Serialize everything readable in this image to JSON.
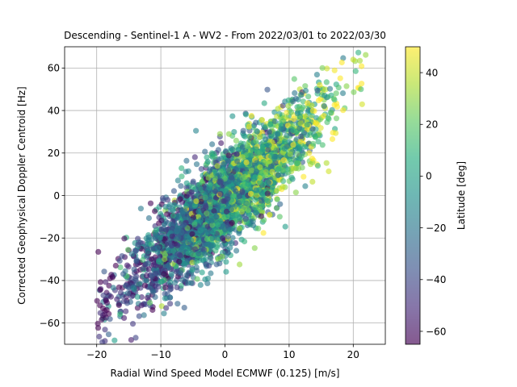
{
  "chart_data": {
    "type": "scatter",
    "title": "Descending - Sentinel-1 A - WV2 - From 2022/03/01 to 2022/03/30",
    "xlabel": "Radial Wind Speed Model ECMWF (0.125) [m/s]",
    "ylabel": "Corrected Geophysical Doppler Centroid [Hz]",
    "xlim": [
      -25,
      25
    ],
    "ylim": [
      -70,
      70
    ],
    "xticks": [
      -20,
      -10,
      0,
      10,
      20
    ],
    "yticks": [
      -60,
      -40,
      -20,
      0,
      20,
      40,
      60
    ],
    "xtick_labels": [
      "−20",
      "−10",
      "0",
      "10",
      "20"
    ],
    "ytick_labels": [
      "−60",
      "−40",
      "−20",
      "0",
      "20",
      "40",
      "60"
    ],
    "grid": true,
    "colormap": "viridis",
    "alpha": 0.6,
    "colorbar": {
      "label": "Latitude [deg]",
      "range": [
        -65,
        50
      ],
      "ticks": [
        -60,
        -40,
        -20,
        0,
        20,
        40
      ],
      "tick_labels": [
        "−60",
        "−40",
        "−20",
        "0",
        "20",
        "40"
      ]
    },
    "trend": {
      "slope": 2.6,
      "intercept": -2,
      "noise_std": 11
    },
    "num_points_estimate": 3500
  }
}
